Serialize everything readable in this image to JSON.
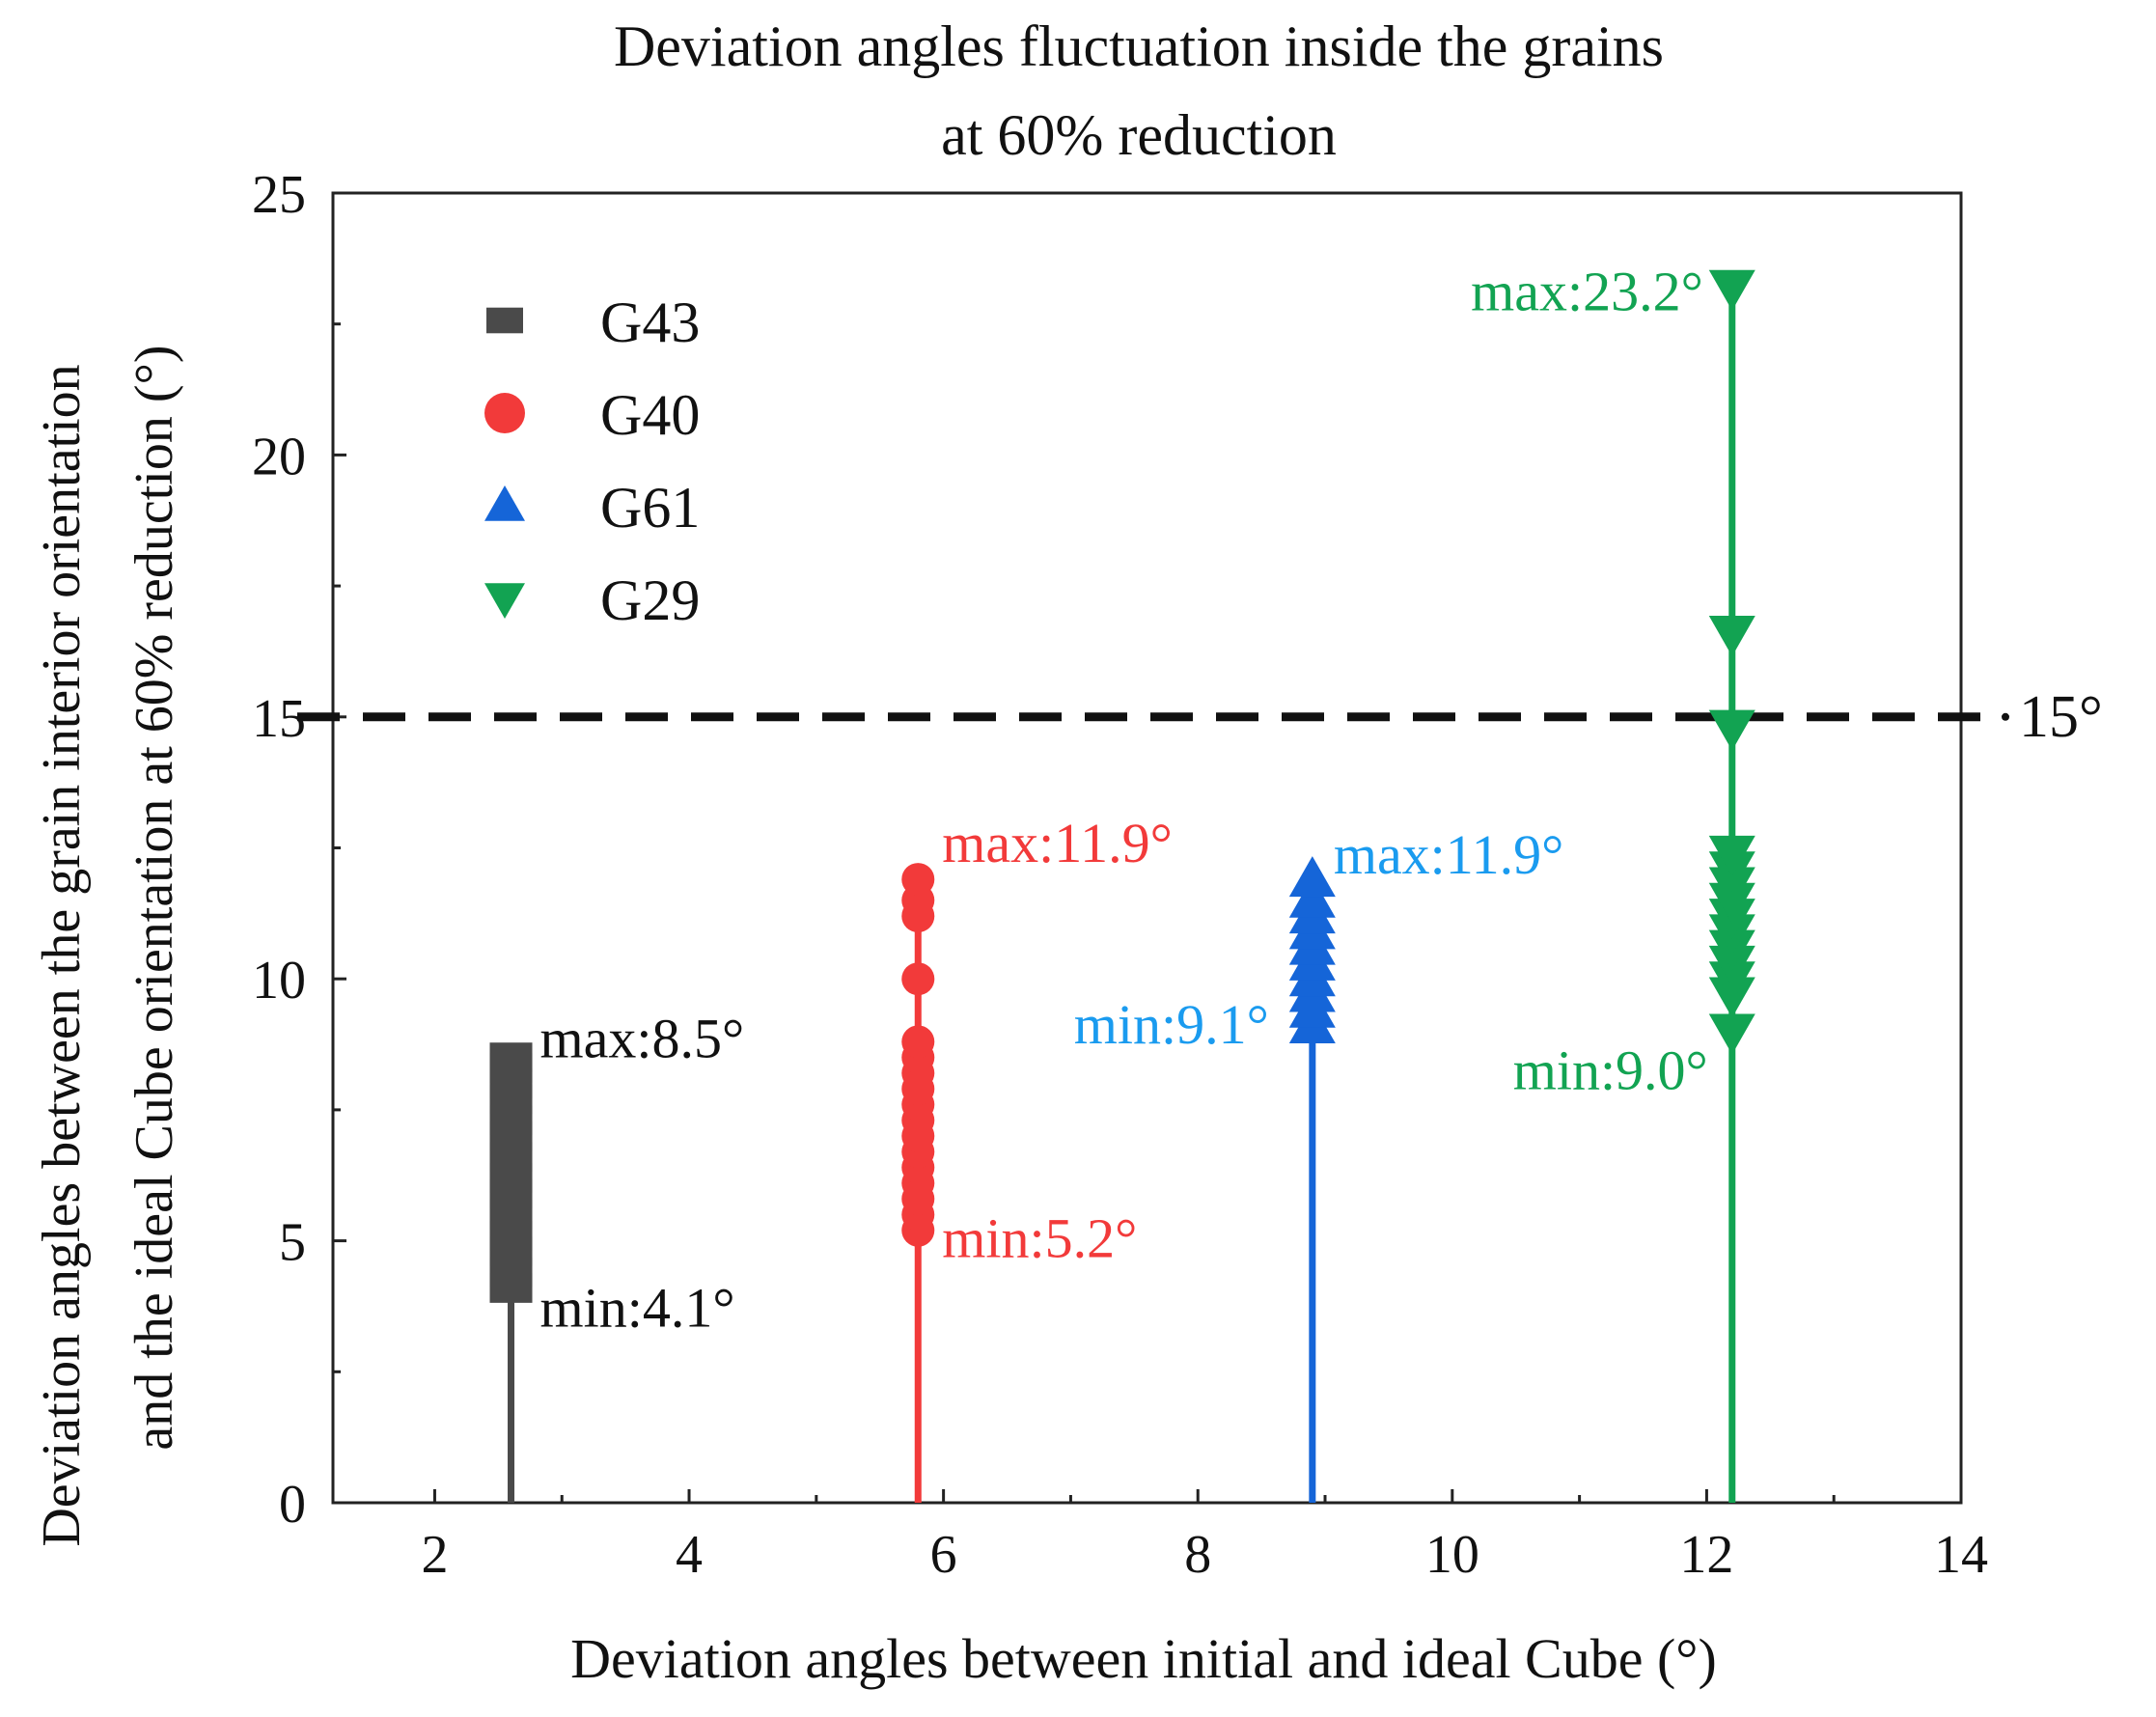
{
  "chart_data": {
    "type": "scatter",
    "title": [
      "Deviation angles fluctuation inside the grains",
      "at 60% reduction"
    ],
    "xlabel": "Deviation angles between initial and ideal Cube (°)",
    "ylabel": [
      "Deviation angles between the grain interior orientation",
      "and the ideal Cube orientation at 60% reduction (°)"
    ],
    "xlim": [
      1.2,
      14
    ],
    "ylim": [
      0,
      25
    ],
    "xticks": [
      2,
      4,
      6,
      8,
      10,
      12,
      14
    ],
    "yticks": [
      0,
      5,
      10,
      15,
      20,
      25
    ],
    "threshold": {
      "value": 15,
      "label": "15°"
    },
    "series": [
      {
        "name": "G43",
        "marker": "square",
        "color": "#4a4a4a",
        "x": 2.6,
        "min": 4.1,
        "max": 8.5,
        "points": [
          4.1,
          4.4,
          4.8,
          5.1,
          5.5,
          5.9,
          6.2,
          6.6,
          7.0,
          7.3,
          7.7,
          8.0,
          8.3,
          8.5
        ],
        "max_label": "max:8.5°",
        "min_label": "min:4.1°"
      },
      {
        "name": "G40",
        "marker": "circle",
        "color": "#f23a3a",
        "x": 5.8,
        "min": 5.2,
        "max": 11.9,
        "points": [
          5.2,
          5.5,
          5.8,
          6.1,
          6.4,
          6.7,
          7.0,
          7.3,
          7.6,
          7.9,
          8.2,
          8.5,
          8.8,
          10.0,
          11.2,
          11.5,
          11.9
        ],
        "max_label": "max:11.9°",
        "min_label": "min:5.2°"
      },
      {
        "name": "G61",
        "marker": "triangle-up",
        "color": "#1565d8",
        "x": 8.9,
        "min": 9.1,
        "max": 11.9,
        "points": [
          9.1,
          9.4,
          9.7,
          10.0,
          10.3,
          10.6,
          10.9,
          11.2,
          11.5,
          11.9
        ],
        "max_label": "max:11.9°",
        "min_label": "min:9.1°"
      },
      {
        "name": "G29",
        "marker": "triangle-down",
        "color": "#12a352",
        "x": 12.2,
        "min": 9.0,
        "max": 23.2,
        "points": [
          9.0,
          9.7,
          10.0,
          10.3,
          10.6,
          10.9,
          11.2,
          11.5,
          11.8,
          12.1,
          12.4,
          14.8,
          16.6,
          23.2
        ],
        "max_label": "max:23.2°",
        "min_label": "min:9.0°"
      }
    ]
  },
  "colors": {
    "axis": "#222222",
    "threshold": "#111111",
    "text": "#111111",
    "g61_label": "#1a9bef"
  }
}
